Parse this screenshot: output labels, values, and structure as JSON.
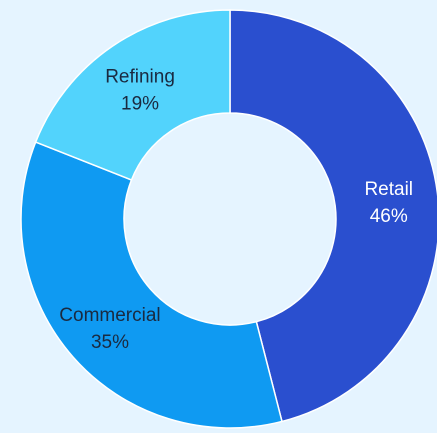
{
  "chart_data": {
    "type": "pie",
    "variant": "donut",
    "title": "",
    "slices": [
      {
        "label": "Retail",
        "value": 46,
        "value_label": "46%",
        "color": "#2a4fcf",
        "text_color": "#ffffff"
      },
      {
        "label": "Commercial",
        "value": 35,
        "value_label": "35%",
        "color": "#0f9af2",
        "text_color": "#1a2a40"
      },
      {
        "label": "Refining",
        "value": 19,
        "value_label": "19%",
        "color": "#52d3fc",
        "text_color": "#1a2a40"
      }
    ],
    "background_color": "#e5f4ff",
    "legend": "none"
  }
}
